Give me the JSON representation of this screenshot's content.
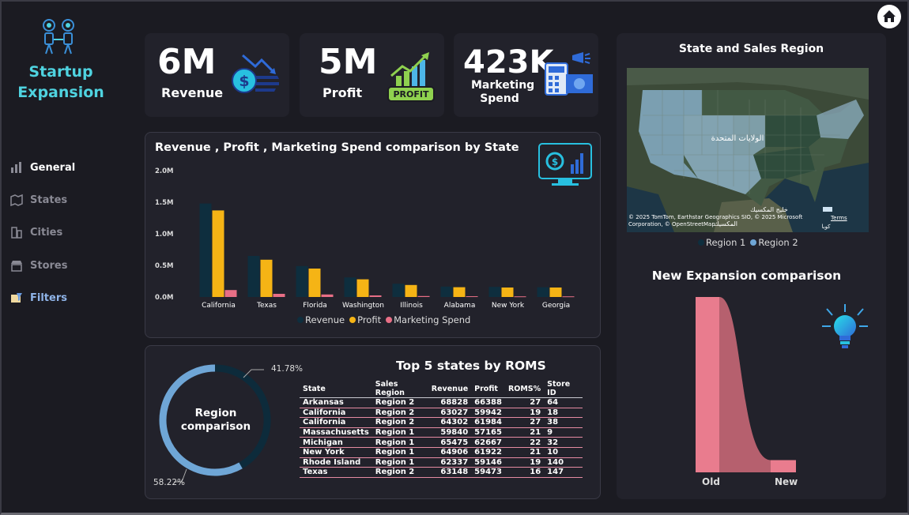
{
  "sidebar": {
    "brand_line1": "Startup",
    "brand_line2": "Expansion",
    "items": [
      {
        "label": "General",
        "icon": "bar-chart-icon"
      },
      {
        "label": "States",
        "icon": "map-icon"
      },
      {
        "label": "Cities",
        "icon": "building-icon"
      },
      {
        "label": "Stores",
        "icon": "store-icon"
      },
      {
        "label": "Filters",
        "icon": "filter-icon"
      }
    ]
  },
  "kpis": [
    {
      "value": "6M",
      "label": "Revenue",
      "icon": "money-hand-icon"
    },
    {
      "value": "5M",
      "label": "Profit",
      "icon": "profit-growth-icon",
      "badge": "PROFIT"
    },
    {
      "value": "423K",
      "label_line1": "Marketing",
      "label_line2": "Spend",
      "icon": "marketing-calculator-icon"
    }
  ],
  "bar_chart": {
    "title": "Revenue , Profit , Marketing Spend  comparison by State",
    "y_ticks": [
      "2.0M",
      "1.5M",
      "1.0M",
      "0.5M",
      "0.0M"
    ],
    "legend": [
      "Revenue",
      "Profit",
      "Marketing Spend"
    ]
  },
  "chart_data": [
    {
      "type": "bar",
      "title": "Revenue , Profit , Marketing Spend  comparison by State",
      "categories": [
        "California",
        "Texas",
        "Florida",
        "Washington",
        "Illinois",
        "Alabama",
        "New York",
        "Georgia"
      ],
      "series": [
        {
          "name": "Revenue",
          "color": "#0e2e3e",
          "values": [
            1480000,
            650000,
            490000,
            310000,
            210000,
            165000,
            160000,
            155000
          ]
        },
        {
          "name": "Profit",
          "color": "#f5b415",
          "values": [
            1370000,
            590000,
            450000,
            280000,
            190000,
            155000,
            150000,
            150000
          ]
        },
        {
          "name": "Marketing Spend",
          "color": "#e86f86",
          "values": [
            110000,
            50000,
            40000,
            25000,
            15000,
            12000,
            10000,
            10000
          ]
        }
      ],
      "ylim": [
        0,
        2000000
      ]
    },
    {
      "type": "pie",
      "title": "Region comparison",
      "labels": [
        "41.78%",
        "58.22%"
      ],
      "values": [
        41.78,
        58.22
      ],
      "colors": [
        "#0d2b3b",
        "#6fa6d6"
      ]
    },
    {
      "type": "area",
      "title": "New Expansion comparison",
      "categories": [
        "Old",
        "New"
      ],
      "values": [
        100,
        7
      ],
      "color": "#e97c8e"
    }
  ],
  "donut": {
    "center_line1": "Region",
    "center_line2": "comparison",
    "label_top": "41.78%",
    "label_bottom": "58.22%"
  },
  "table": {
    "title": "Top 5 states by ROMS",
    "headers": [
      "State",
      "Sales Region",
      "Revenue",
      "Profit",
      "ROMS%",
      "Store ID"
    ],
    "rows": [
      [
        "Arkansas",
        "Region 2",
        "68828",
        "66388",
        "27",
        "64"
      ],
      [
        "California",
        "Region 2",
        "63027",
        "59942",
        "19",
        "18"
      ],
      [
        "California",
        "Region 2",
        "64302",
        "61984",
        "27",
        "38"
      ],
      [
        "Massachusetts",
        "Region 1",
        "59840",
        "57165",
        "21",
        "9"
      ],
      [
        "Michigan",
        "Region 1",
        "65475",
        "62667",
        "22",
        "32"
      ],
      [
        "New York",
        "Region 1",
        "64906",
        "61922",
        "21",
        "10"
      ],
      [
        "Rhode Island",
        "Region 1",
        "62337",
        "59146",
        "19",
        "140"
      ],
      [
        "Texas",
        "Region 2",
        "63148",
        "59473",
        "16",
        "147"
      ]
    ]
  },
  "map": {
    "title": "State and Sales Region",
    "label_us": "الولايات المتحدة",
    "label_gulf": "خليج المكسيك",
    "label_mexico": "المكسيك",
    "label_cuba": "كوبا",
    "attribution": "© 2025 TomTom, Earthstar Geographics SIO, © 2025 Microsoft Corporation, © OpenStreetMap",
    "terms": "Terms",
    "legend": [
      "Region 1",
      "Region 2"
    ]
  },
  "expansion": {
    "title": "New Expansion comparison",
    "x_labels": [
      "Old",
      "New"
    ],
    "icon": "lightbulb-icon"
  },
  "home_icon": "home-icon"
}
